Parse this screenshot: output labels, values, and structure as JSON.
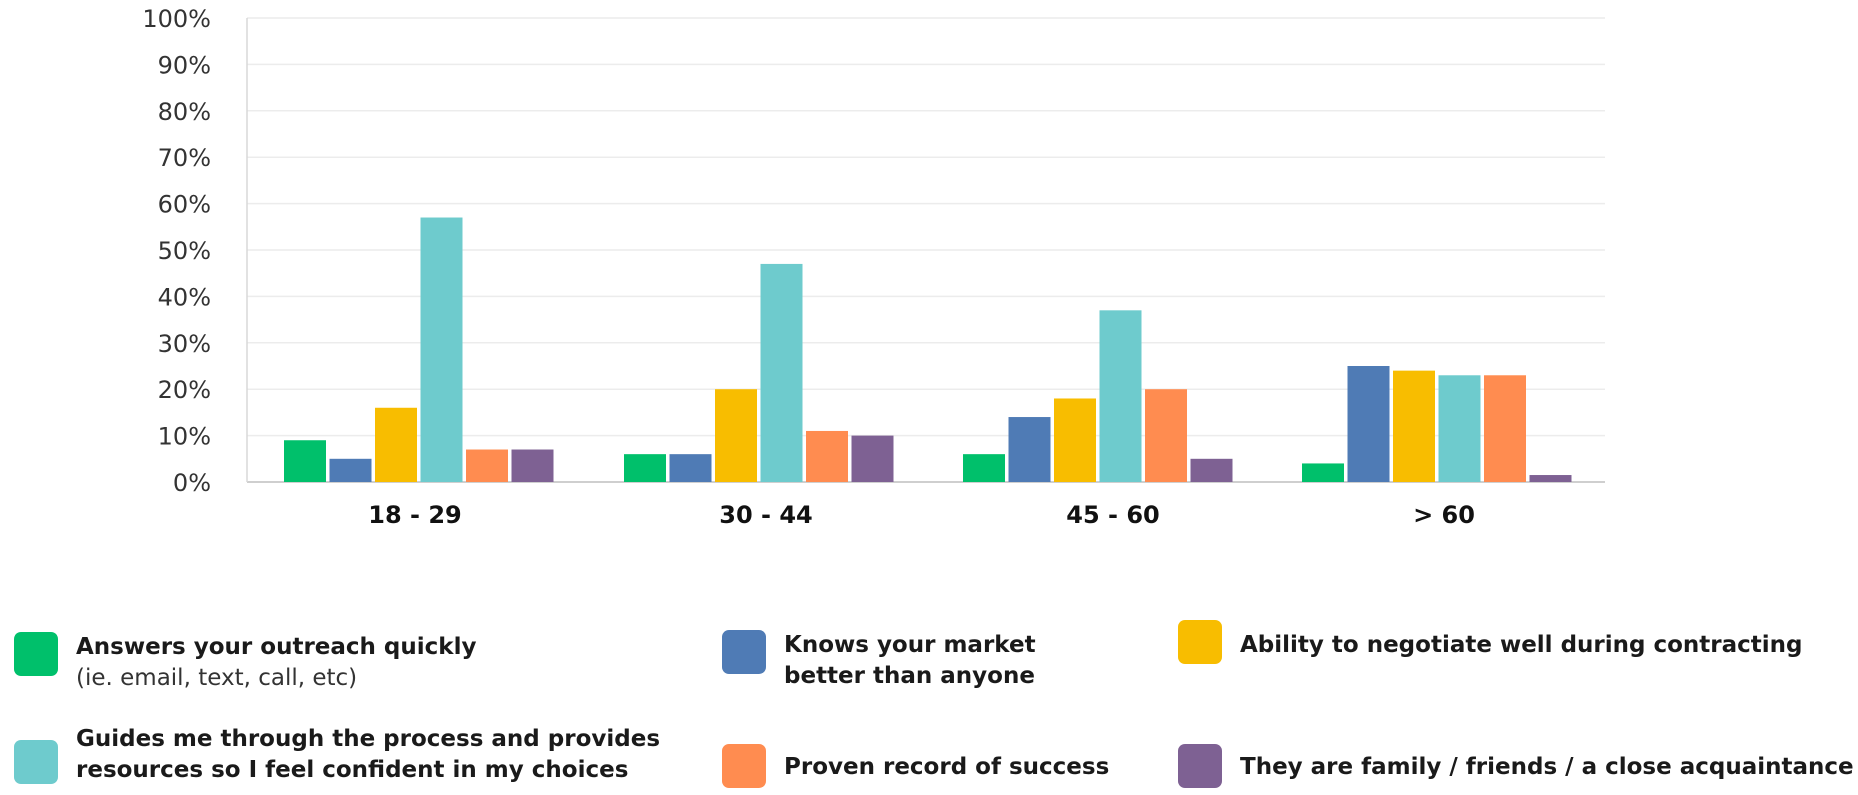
{
  "chart_data": {
    "type": "bar",
    "categories": [
      "18 - 29",
      "30 - 44",
      "45 - 60",
      "> 60"
    ],
    "y_ticks": [
      "0%",
      "10%",
      "20%",
      "30%",
      "40%",
      "50%",
      "60%",
      "70%",
      "80%",
      "90%",
      "100%"
    ],
    "ylim": [
      0,
      100
    ],
    "grid": true,
    "legend_position": "bottom",
    "series": [
      {
        "name": "Answers your outreach quickly (ie. email, text, call, etc)",
        "color": "#00c06b",
        "values": [
          9,
          6,
          6,
          4
        ]
      },
      {
        "name": "Knows your market better than anyone",
        "color": "#4f7bb5",
        "values": [
          5,
          6,
          14,
          25
        ]
      },
      {
        "name": "Ability to negotiate well during contracting",
        "color": "#f8bd00",
        "values": [
          16,
          20,
          18,
          24
        ]
      },
      {
        "name": "Guides me through the process and provides resources so I feel confident in my choices",
        "color": "#6ecbcd",
        "values": [
          57,
          47,
          37,
          23
        ]
      },
      {
        "name": "Proven record of success",
        "color": "#ff8c50",
        "values": [
          7,
          11,
          20,
          23
        ]
      },
      {
        "name": "They are family / friends / a close acquaintance",
        "color": "#7e6193",
        "values": [
          7,
          10,
          5,
          1.5
        ]
      }
    ]
  },
  "legend": {
    "items": [
      {
        "line1": "Answers your outreach quickly",
        "line2": "(ie. email, text, call, etc)",
        "color": "#00c06b"
      },
      {
        "line1": "Knows your market",
        "line2": "better than anyone",
        "color": "#4f7bb5",
        "line2_bold": true
      },
      {
        "line1": "Ability to negotiate well during contracting",
        "line2": "",
        "color": "#f8bd00"
      },
      {
        "line1": "Guides me through the process and provides",
        "line2": "resources so I feel confident in my choices",
        "color": "#6ecbcd",
        "line2_bold": true
      },
      {
        "line1": "Proven record of success",
        "line2": "",
        "color": "#ff8c50"
      },
      {
        "line1": "They are family / friends / a close acquaintance",
        "line2": "",
        "color": "#7e6193"
      }
    ]
  }
}
